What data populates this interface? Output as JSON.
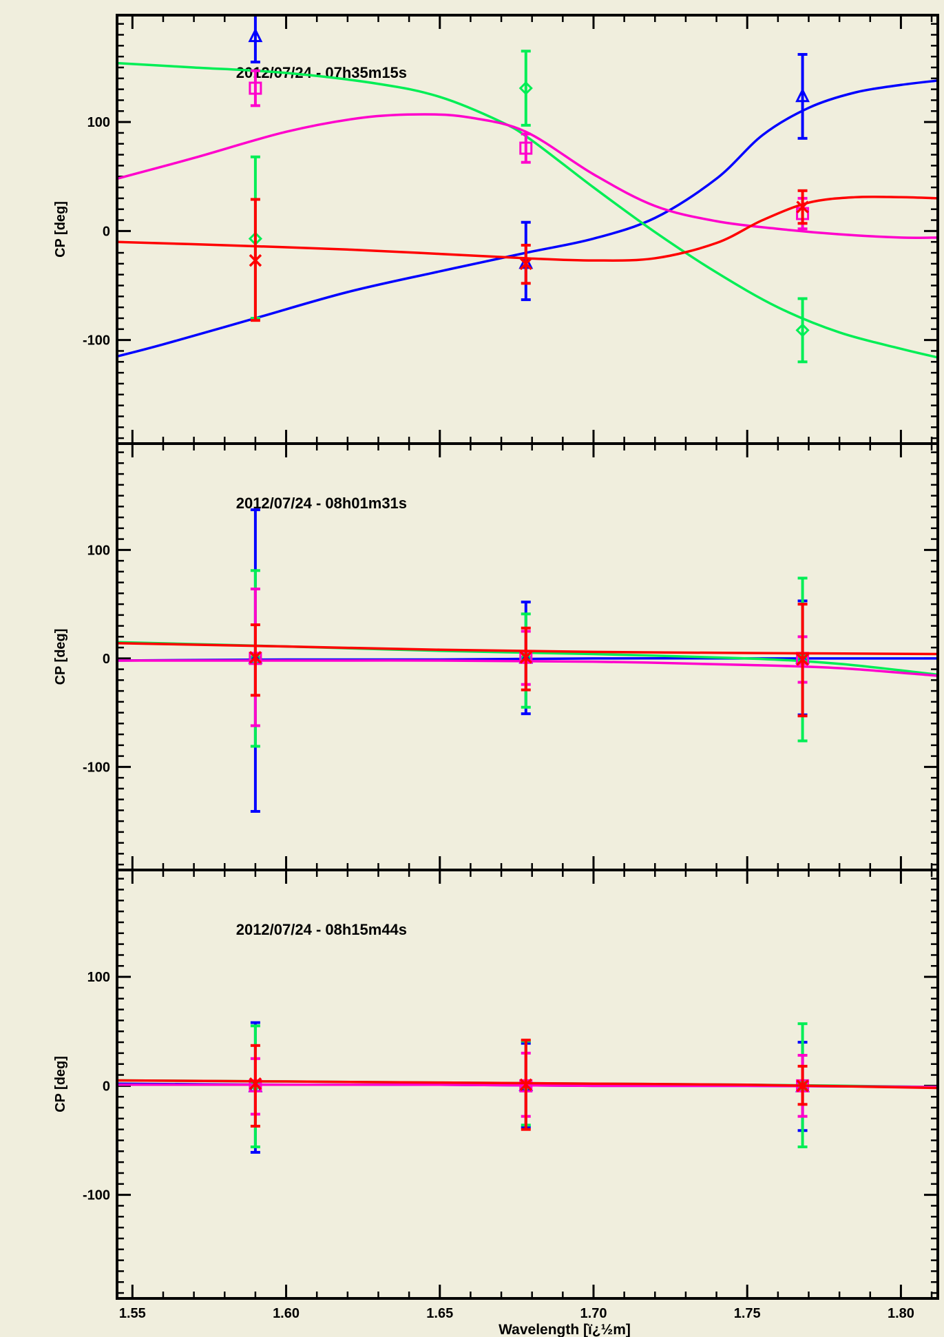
{
  "figure": {
    "background": "#f0eedd",
    "xlabel": "Wavelength [ï¿½m]",
    "ylabel": "CP [deg]",
    "xlim": [
      1.545,
      1.812
    ],
    "ylim": [
      -195,
      198
    ],
    "xticks": [
      1.55,
      1.6,
      1.65,
      1.7,
      1.75,
      1.8
    ],
    "xtick_labels": [
      "1.55",
      "1.60",
      "1.65",
      "1.70",
      "1.75",
      "1.80"
    ],
    "yticks": [
      -100,
      0,
      100
    ],
    "ytick_labels": [
      "-100",
      "0",
      "100"
    ]
  },
  "series_styles": {
    "blue": {
      "color": "#0000ff",
      "marker": "triangle"
    },
    "green": {
      "color": "#00ee55",
      "marker": "diamond"
    },
    "magenta": {
      "color": "#ff00cc",
      "marker": "square"
    },
    "red": {
      "color": "#ff0000",
      "marker": "x"
    }
  },
  "chart_data": [
    {
      "type": "scatter",
      "title": "2012/07/24 - 07h35m15s",
      "x": [
        1.59,
        1.678,
        1.768
      ],
      "series": [
        {
          "style": "blue",
          "values": [
            178,
            -30,
            123
          ],
          "errors": [
            [
              155,
              200
            ],
            [
              -63,
              8
            ],
            [
              85,
              162
            ]
          ],
          "model": [
            [
              1.545,
              -115
            ],
            [
              1.56,
              -104
            ],
            [
              1.59,
              -80
            ],
            [
              1.62,
              -56
            ],
            [
              1.65,
              -37
            ],
            [
              1.678,
              -20
            ],
            [
              1.7,
              -7
            ],
            [
              1.72,
              12
            ],
            [
              1.74,
              48
            ],
            [
              1.755,
              88
            ],
            [
              1.77,
              113
            ],
            [
              1.785,
              127
            ],
            [
              1.8,
              134
            ],
            [
              1.812,
              138
            ]
          ]
        },
        {
          "style": "green",
          "values": [
            -7,
            131,
            -91
          ],
          "errors": [
            [
              -80,
              68
            ],
            [
              97,
              165
            ],
            [
              -120,
              -62
            ]
          ],
          "model": [
            [
              1.545,
              154
            ],
            [
              1.57,
              150
            ],
            [
              1.6,
              145
            ],
            [
              1.63,
              135
            ],
            [
              1.65,
              123
            ],
            [
              1.67,
              100
            ],
            [
              1.68,
              83
            ],
            [
              1.7,
              40
            ],
            [
              1.72,
              -1
            ],
            [
              1.74,
              -38
            ],
            [
              1.76,
              -70
            ],
            [
              1.78,
              -93
            ],
            [
              1.8,
              -108
            ],
            [
              1.812,
              -116
            ]
          ]
        },
        {
          "style": "magenta",
          "values": [
            131,
            76,
            16
          ],
          "errors": [
            [
              115,
              147
            ],
            [
              63,
              89
            ],
            [
              2,
              30
            ]
          ],
          "model": [
            [
              1.545,
              48
            ],
            [
              1.57,
              67
            ],
            [
              1.6,
              91
            ],
            [
              1.625,
              104
            ],
            [
              1.645,
              107
            ],
            [
              1.66,
              104
            ],
            [
              1.678,
              91
            ],
            [
              1.7,
              52
            ],
            [
              1.72,
              23
            ],
            [
              1.74,
              9
            ],
            [
              1.76,
              2
            ],
            [
              1.78,
              -3
            ],
            [
              1.8,
              -6
            ],
            [
              1.812,
              -6
            ]
          ]
        },
        {
          "style": "red",
          "values": [
            -27,
            -30,
            22
          ],
          "errors": [
            [
              -82,
              29
            ],
            [
              -48,
              -13
            ],
            [
              7,
              37
            ]
          ],
          "model": [
            [
              1.545,
              -10
            ],
            [
              1.58,
              -13
            ],
            [
              1.62,
              -17
            ],
            [
              1.65,
              -21
            ],
            [
              1.678,
              -25
            ],
            [
              1.7,
              -27
            ],
            [
              1.72,
              -25
            ],
            [
              1.74,
              -11
            ],
            [
              1.755,
              10
            ],
            [
              1.77,
              26
            ],
            [
              1.785,
              31
            ],
            [
              1.8,
              31
            ],
            [
              1.812,
              30
            ]
          ]
        }
      ]
    },
    {
      "type": "scatter",
      "title": "2012/07/24 - 08h01m31s",
      "x": [
        1.59,
        1.678,
        1.768
      ],
      "series": [
        {
          "style": "blue",
          "values": [
            0,
            0,
            0
          ],
          "errors": [
            [
              -141,
              137
            ],
            [
              -51,
              52
            ],
            [
              -52,
              53
            ]
          ],
          "model": [
            [
              1.545,
              -2
            ],
            [
              1.6,
              -1
            ],
            [
              1.65,
              -1
            ],
            [
              1.7,
              0
            ],
            [
              1.75,
              0
            ],
            [
              1.812,
              0
            ]
          ]
        },
        {
          "style": "green",
          "values": [
            0,
            0,
            -1
          ],
          "errors": [
            [
              -81,
              81
            ],
            [
              -45,
              41
            ],
            [
              -76,
              74
            ]
          ],
          "model": [
            [
              1.545,
              15
            ],
            [
              1.6,
              11
            ],
            [
              1.65,
              7
            ],
            [
              1.7,
              4
            ],
            [
              1.75,
              0
            ],
            [
              1.78,
              -5
            ],
            [
              1.812,
              -15
            ]
          ]
        },
        {
          "style": "magenta",
          "values": [
            0,
            1,
            0
          ],
          "errors": [
            [
              -62,
              64
            ],
            [
              -24,
              25
            ],
            [
              -22,
              20
            ]
          ],
          "model": [
            [
              1.545,
              -2
            ],
            [
              1.6,
              -2
            ],
            [
              1.65,
              -2
            ],
            [
              1.7,
              -3
            ],
            [
              1.75,
              -6
            ],
            [
              1.78,
              -9
            ],
            [
              1.812,
              -16
            ]
          ]
        },
        {
          "style": "red",
          "values": [
            1,
            1,
            -1
          ],
          "errors": [
            [
              -34,
              31
            ],
            [
              -29,
              28
            ],
            [
              -53,
              50
            ]
          ],
          "model": [
            [
              1.545,
              14
            ],
            [
              1.6,
              11
            ],
            [
              1.65,
              8
            ],
            [
              1.7,
              6
            ],
            [
              1.75,
              5
            ],
            [
              1.812,
              4
            ]
          ]
        }
      ]
    },
    {
      "type": "scatter",
      "title": "2012/07/24 - 08h15m44s",
      "x": [
        1.59,
        1.678,
        1.768
      ],
      "series": [
        {
          "style": "blue",
          "values": [
            -1,
            0,
            -1
          ],
          "errors": [
            [
              -61,
              58
            ],
            [
              -38,
              39
            ],
            [
              -41,
              40
            ]
          ],
          "model": [
            [
              1.545,
              2
            ],
            [
              1.6,
              1
            ],
            [
              1.65,
              1
            ],
            [
              1.7,
              0
            ],
            [
              1.75,
              0
            ],
            [
              1.812,
              -1
            ]
          ]
        },
        {
          "style": "green",
          "values": [
            1,
            1,
            0
          ],
          "errors": [
            [
              -56,
              55
            ],
            [
              -36,
              41
            ],
            [
              -56,
              57
            ]
          ],
          "model": [
            [
              1.545,
              5
            ],
            [
              1.6,
              4
            ],
            [
              1.65,
              3
            ],
            [
              1.7,
              2
            ],
            [
              1.75,
              1
            ],
            [
              1.812,
              -1
            ]
          ]
        },
        {
          "style": "magenta",
          "values": [
            0,
            0,
            0
          ],
          "errors": [
            [
              -26,
              25
            ],
            [
              -28,
              30
            ],
            [
              -28,
              28
            ]
          ],
          "model": [
            [
              1.545,
              1
            ],
            [
              1.6,
              1
            ],
            [
              1.65,
              1
            ],
            [
              1.7,
              0
            ],
            [
              1.75,
              0
            ],
            [
              1.812,
              -1
            ]
          ]
        },
        {
          "style": "red",
          "values": [
            2,
            1,
            0
          ],
          "errors": [
            [
              -37,
              37
            ],
            [
              -40,
              42
            ],
            [
              -17,
              18
            ]
          ],
          "model": [
            [
              1.545,
              5
            ],
            [
              1.6,
              4
            ],
            [
              1.65,
              3
            ],
            [
              1.7,
              2
            ],
            [
              1.75,
              1
            ],
            [
              1.812,
              -2
            ]
          ]
        }
      ]
    }
  ]
}
